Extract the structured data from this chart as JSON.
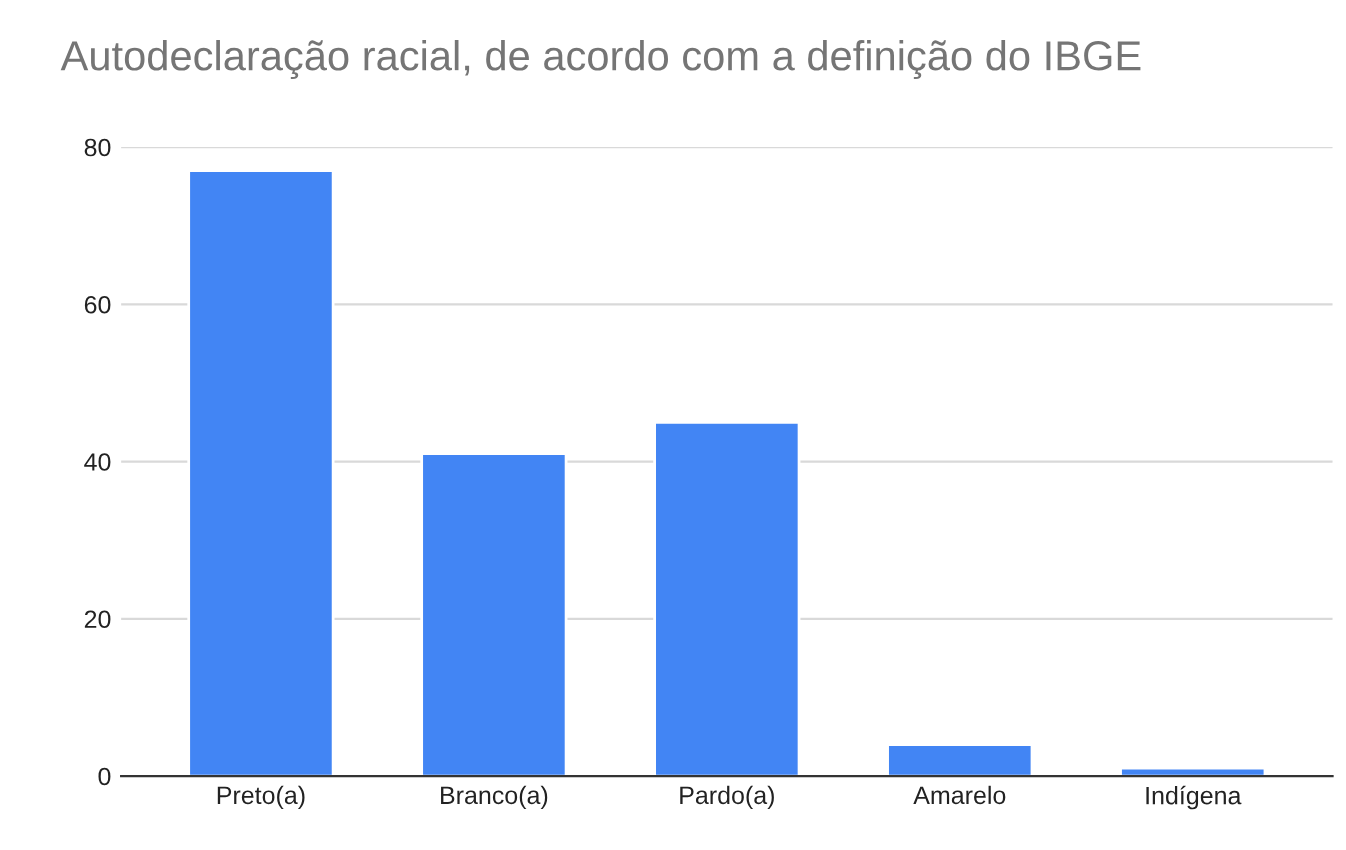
{
  "chart_data": {
    "type": "bar",
    "title": "Autodeclaração racial, de acordo com a definição do IBGE",
    "categories": [
      "Preto(a)",
      "Branco(a)",
      "Pardo(a)",
      "Amarelo",
      "Indígena"
    ],
    "values": [
      77,
      41,
      45,
      4,
      1
    ],
    "color": "#4285f4",
    "ylim": [
      0,
      80
    ],
    "yticks": [
      0,
      20,
      40,
      60,
      80
    ],
    "grid": "y",
    "legend": false
  }
}
